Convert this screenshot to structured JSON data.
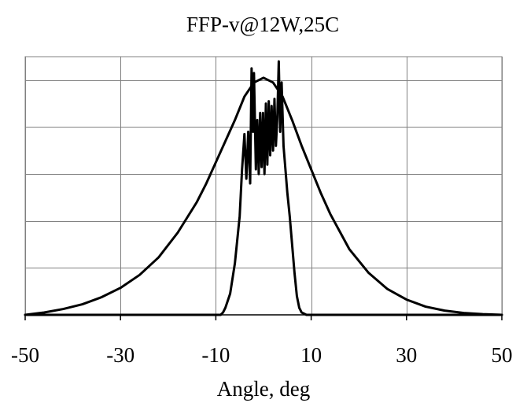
{
  "chart_data": {
    "type": "line",
    "title": "FFP-v@12W,25C",
    "xlabel": "Angle, deg",
    "ylabel": "",
    "xlim": [
      -50,
      50
    ],
    "ylim": [
      0,
      1.1
    ],
    "x_ticks": [
      -50,
      -30,
      -10,
      10,
      30,
      50
    ],
    "x_tick_labels": [
      "-50",
      "-30",
      "-10",
      "10",
      "30",
      "50"
    ],
    "y_gridlines": [
      0.2,
      0.4,
      0.6,
      0.8,
      1.0
    ],
    "x_gridlines": [
      -50,
      -30,
      -10,
      10,
      30,
      50
    ],
    "grid": true,
    "legend": "none",
    "series": [
      {
        "x": [
          -50,
          -46,
          -42,
          -38,
          -34,
          -30,
          -26,
          -22,
          -18,
          -14,
          -12,
          -10,
          -8,
          -6,
          -4,
          -2,
          0,
          2,
          4,
          6,
          8,
          10,
          12,
          14,
          18,
          22,
          26,
          30,
          34,
          38,
          42,
          46,
          50
        ],
        "y": [
          0.0,
          0.01,
          0.025,
          0.045,
          0.075,
          0.115,
          0.17,
          0.245,
          0.35,
          0.48,
          0.56,
          0.65,
          0.74,
          0.83,
          0.93,
          0.99,
          1.01,
          0.99,
          0.93,
          0.83,
          0.72,
          0.62,
          0.52,
          0.43,
          0.28,
          0.18,
          0.11,
          0.065,
          0.035,
          0.018,
          0.008,
          0.003,
          0.0
        ]
      },
      {
        "x": [
          -50,
          -12,
          -9,
          -8.5,
          -8,
          -7,
          -6,
          -5,
          -4.5,
          -4,
          -3.6,
          -3.2,
          -2.8,
          -2.5,
          -2.2,
          -2.0,
          -1.6,
          -1.3,
          -1.0,
          -0.7,
          -0.4,
          -0.1,
          0.2,
          0.5,
          0.8,
          1.1,
          1.4,
          1.7,
          2.0,
          2.3,
          2.6,
          2.9,
          3.2,
          3.5,
          3.8,
          4.2,
          4.6,
          5.0,
          5.5,
          6.0,
          6.5,
          7.0,
          7.5,
          8.0,
          9.0,
          12,
          50
        ],
        "y": [
          0.0,
          0.0,
          0.0,
          0.01,
          0.03,
          0.09,
          0.22,
          0.42,
          0.62,
          0.77,
          0.58,
          0.78,
          0.56,
          1.05,
          0.78,
          1.03,
          0.62,
          0.83,
          0.6,
          0.86,
          0.63,
          0.86,
          0.6,
          0.9,
          0.64,
          0.91,
          0.68,
          0.89,
          0.7,
          0.92,
          0.72,
          0.84,
          1.08,
          0.78,
          0.99,
          0.72,
          0.62,
          0.52,
          0.42,
          0.3,
          0.18,
          0.08,
          0.03,
          0.01,
          0.0,
          0.0,
          0.0
        ]
      }
    ]
  }
}
